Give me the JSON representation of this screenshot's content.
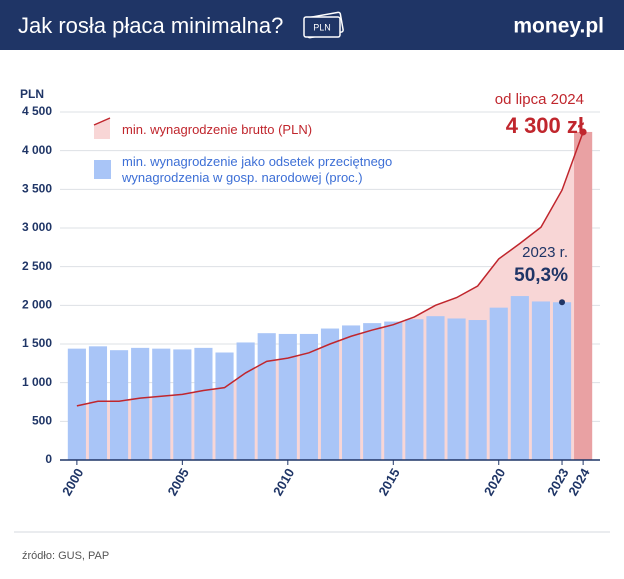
{
  "header": {
    "title": "Jak rosła płaca minimalna?",
    "icon_text": "PLN",
    "brand": "money.pl"
  },
  "chart_data": {
    "type": "bar-line",
    "y_axis_label": "PLN",
    "x": [
      2000,
      2001,
      2002,
      2003,
      2004,
      2005,
      2006,
      2007,
      2008,
      2009,
      2010,
      2011,
      2012,
      2013,
      2014,
      2015,
      2016,
      2017,
      2018,
      2019,
      2020,
      2021,
      2022,
      2023,
      2024
    ],
    "xlim": [
      1999.2,
      2024.8
    ],
    "xticks": [
      2000,
      2005,
      2010,
      2015,
      2020,
      2023,
      2024
    ],
    "ylim": [
      0,
      4500
    ],
    "yticks": [
      0,
      500,
      {
        "value": 1000,
        "label": "1 000"
      },
      {
        "value": 1500,
        "label": "1 500"
      },
      {
        "value": 2000,
        "label": "2 000"
      },
      {
        "value": 2500,
        "label": "2 500"
      },
      {
        "value": 3000,
        "label": "3 000"
      },
      {
        "value": 3500,
        "label": "3 500"
      },
      {
        "value": 4000,
        "label": "4 000"
      },
      {
        "value": 4500,
        "label": "4 500"
      }
    ],
    "grid": true,
    "series": [
      {
        "name": "min. wynagrodzenie jako odsetek przeciętnego wynagrodzenia w gosp. narodowej (proc.)",
        "type": "bar",
        "color": "#a9c5f7",
        "values": [
          1440,
          1470,
          1420,
          1450,
          1440,
          1430,
          1450,
          1390,
          1520,
          1640,
          1630,
          1630,
          1700,
          1740,
          1770,
          1790,
          1820,
          1860,
          1830,
          1810,
          1970,
          2120,
          2050,
          2040,
          null
        ]
      },
      {
        "name": "min. wynagrodzenie brutto (PLN)",
        "type": "area-line",
        "color": "#c0262d",
        "fill": "#f8d6d6",
        "highlight_color": "#e9a1a3",
        "values": [
          700,
          760,
          760,
          800,
          824,
          849,
          899,
          936,
          1126,
          1276,
          1317,
          1386,
          1500,
          1600,
          1680,
          1750,
          1850,
          2000,
          2100,
          2250,
          2600,
          2800,
          3010,
          3490,
          4242
        ]
      }
    ],
    "annotations": [
      {
        "text": "od lipca 2024",
        "color": "#c0262d"
      },
      {
        "text": "4 300 zł",
        "color": "#c0262d"
      },
      {
        "text": "2023 r.",
        "color": "#1f3566"
      },
      {
        "text": "50,3%",
        "color": "#1f3566"
      }
    ]
  },
  "footer": {
    "source": "źródło: GUS, PAP"
  }
}
